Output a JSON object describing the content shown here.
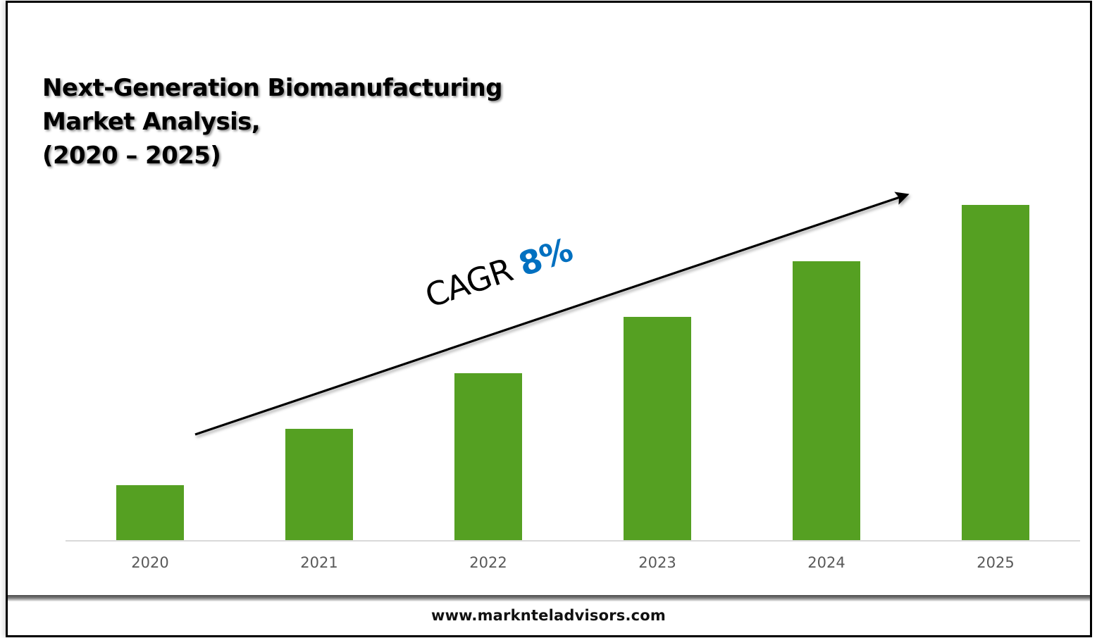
{
  "page": {
    "title_lines": [
      "Next-Generation Biomanufacturing",
      "Market Analysis,",
      "(2020 – 2025)"
    ],
    "footer_url": "www.marknteladvisors.com"
  },
  "annotation": {
    "label": "CAGR",
    "value": "8%",
    "value_color": "#0070C0",
    "arrow": "trend-up"
  },
  "chart_data": {
    "type": "bar",
    "title": "Next-Generation Biomanufacturing Market Analysis, (2020 – 2025)",
    "categories": [
      "2020",
      "2021",
      "2022",
      "2023",
      "2024",
      "2025"
    ],
    "values": [
      16.4,
      33.2,
      49.8,
      66.6,
      83.2,
      100
    ],
    "value_note": "relative bar heights (no y-axis shown; tallest = 100)",
    "xlabel": "",
    "ylabel": "",
    "ylim": [
      0,
      100
    ],
    "grid": false,
    "legend": "none",
    "bar_color": "#55A022",
    "axis_color": "#D9D9D9",
    "annotations": [
      "CAGR 8%"
    ]
  }
}
